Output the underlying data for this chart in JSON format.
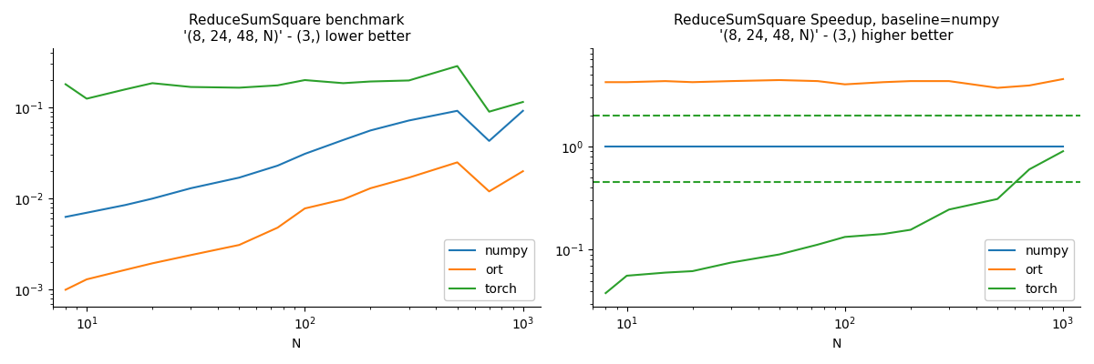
{
  "left_title": "ReduceSumSquare benchmark\n'(8, 24, 48, N)' - (3,) lower better",
  "right_title": "ReduceSumSquare Speedup, baseline=numpy\n'(8, 24, 48, N)' - (3,) higher better",
  "xlabel": "N",
  "N_values": [
    8,
    10,
    15,
    20,
    30,
    50,
    75,
    100,
    150,
    200,
    300,
    500,
    700,
    1000
  ],
  "numpy_bench": [
    0.0063,
    0.007,
    0.0085,
    0.01,
    0.013,
    0.017,
    0.023,
    0.031,
    0.044,
    0.056,
    0.072,
    0.092,
    0.043,
    0.092
  ],
  "ort_bench": [
    0.001,
    0.0013,
    0.00165,
    0.00195,
    0.0024,
    0.0031,
    0.0048,
    0.0078,
    0.0098,
    0.013,
    0.017,
    0.025,
    0.012,
    0.02
  ],
  "torch_bench": [
    0.18,
    0.125,
    0.158,
    0.185,
    0.168,
    0.165,
    0.175,
    0.2,
    0.185,
    0.193,
    0.198,
    0.285,
    0.09,
    0.115
  ],
  "numpy_speedup": [
    1.0,
    1.0,
    1.0,
    1.0,
    1.0,
    1.0,
    1.0,
    1.0,
    1.0,
    1.0,
    1.0,
    1.0,
    1.0,
    1.0
  ],
  "ort_speedup": [
    4.2,
    4.2,
    4.3,
    4.2,
    4.3,
    4.4,
    4.3,
    4.0,
    4.2,
    4.3,
    4.3,
    3.7,
    3.9,
    4.5
  ],
  "torch_speedup": [
    0.038,
    0.056,
    0.06,
    0.062,
    0.075,
    0.09,
    0.112,
    0.133,
    0.142,
    0.156,
    0.245,
    0.31,
    0.6,
    0.9
  ],
  "dashed_green_upper": 2.0,
  "dashed_green_lower": 0.45,
  "color_numpy": "#1f77b4",
  "color_ort": "#ff7f0e",
  "color_torch": "#2ca02c",
  "left_ylim": [
    0.00065,
    0.45
  ],
  "right_ylim": [
    0.028,
    9.0
  ],
  "xlim": [
    7,
    1200
  ]
}
